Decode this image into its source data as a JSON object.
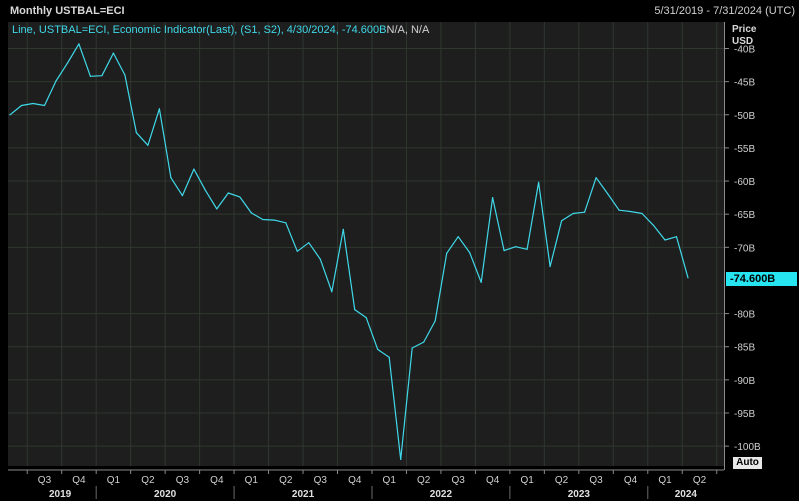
{
  "header": {
    "title": "Monthly USTBAL=ECI",
    "date_range": "5/31/2019 - 7/31/2024 (UTC)"
  },
  "legend": {
    "text": "Line, USTBAL=ECI, Economic Indicator(Last), (S1, S2), 4/30/2024, -74.600B",
    "na_text": "N/A, N/A"
  },
  "axis": {
    "price_label": "Price",
    "currency": "USD",
    "last_value": "-74.600B",
    "auto_label": "Auto"
  },
  "colors": {
    "background": "#000000",
    "plot_background": "#1e1e1e",
    "grid": "#2f372f",
    "series": "#3fd9e9",
    "badge": "#26e4f0"
  },
  "chart_data": {
    "type": "line",
    "series": [
      {
        "values": [
          -50.0,
          -48.6,
          -48.3,
          -48.6,
          -44.9,
          -42.2,
          -39.3,
          -44.2,
          -44.1,
          -40.7,
          -44.0,
          -52.7,
          -54.6,
          -49.1,
          -59.5,
          -62.2,
          -58.2,
          -61.4,
          -64.2,
          -61.8,
          -62.4,
          -64.8,
          -65.8,
          -65.9,
          -66.3,
          -70.6,
          -69.3,
          -71.8,
          -76.7,
          -67.3,
          -79.4,
          -80.6,
          -85.4,
          -86.6,
          -102.0,
          -85.2,
          -84.3,
          -81.1,
          -70.9,
          -68.4,
          -70.8,
          -75.3,
          -62.5,
          -70.5,
          -69.9,
          -70.3,
          -60.2,
          -72.9,
          -66.0,
          -64.9,
          -64.7,
          -59.5,
          -61.9,
          -64.4,
          -64.6,
          -64.9,
          -66.7,
          -68.9,
          -68.4,
          -74.6
        ]
      }
    ],
    "x_start": "2019-05",
    "x_end": "2024-04",
    "ylim": [
      -103,
      -36
    ],
    "yticks": [
      "-40B",
      "-45B",
      "-50B",
      "-55B",
      "-60B",
      "-65B",
      "-70B",
      "-80B",
      "-85B",
      "-90B",
      "-95B",
      "-100B"
    ],
    "quarter_labels": [
      "Q3",
      "Q4",
      "Q1",
      "Q2",
      "Q3",
      "Q4",
      "Q1",
      "Q2",
      "Q3",
      "Q4",
      "Q1",
      "Q2",
      "Q3",
      "Q4",
      "Q1",
      "Q2",
      "Q3",
      "Q4",
      "Q1",
      "Q2",
      "Q3"
    ],
    "year_labels": [
      "2019",
      "2020",
      "2021",
      "2022",
      "2023",
      "2024"
    ],
    "grid": true,
    "legend_position": "top-left"
  }
}
